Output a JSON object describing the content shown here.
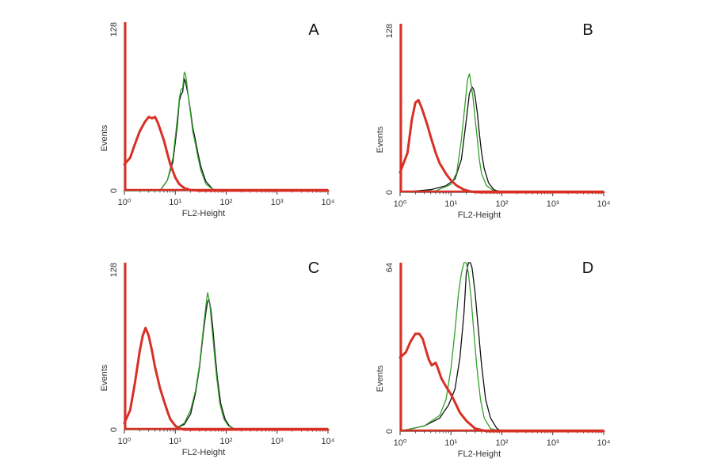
{
  "figure": {
    "colors": {
      "isotype": "#d93025",
      "green": "#33a02c",
      "black": "#111111",
      "axis": "#333333"
    }
  },
  "chart_data": [
    {
      "type": "line",
      "panel": "A",
      "xscale": "log",
      "xlim": [
        1,
        10000
      ],
      "ylim": [
        0,
        128
      ],
      "xlabel": "FL2-Height",
      "ylabel": "Events",
      "xticks": [
        "10⁰",
        "10¹",
        "10²",
        "10³",
        "10⁴"
      ],
      "yticks": [
        "0",
        "128"
      ],
      "series": [
        {
          "color": "red",
          "x": [
            1,
            1.3,
            1.6,
            2,
            2.5,
            3,
            3.5,
            4,
            4.5,
            5,
            6,
            7,
            8,
            10,
            12,
            15,
            20,
            30,
            100,
            10000
          ],
          "y": [
            20,
            25,
            35,
            45,
            52,
            56,
            55,
            56,
            52,
            47,
            38,
            28,
            20,
            10,
            5,
            2,
            0.5,
            0,
            0,
            0
          ]
        },
        {
          "color": "green",
          "x": [
            1,
            5,
            7,
            9,
            11,
            12,
            13,
            14,
            15,
            16,
            18,
            20,
            22,
            25,
            28,
            32,
            40,
            55,
            100,
            10000
          ],
          "y": [
            0,
            0,
            8,
            25,
            55,
            70,
            77,
            78,
            90,
            88,
            72,
            58,
            45,
            35,
            25,
            15,
            5,
            1,
            0,
            0
          ]
        },
        {
          "color": "black",
          "x": [
            1,
            5,
            7,
            9,
            11,
            12,
            13,
            14,
            15,
            16,
            18,
            20,
            22,
            25,
            28,
            32,
            40,
            55,
            100,
            10000
          ],
          "y": [
            0,
            0,
            8,
            22,
            50,
            68,
            73,
            75,
            85,
            82,
            72,
            60,
            48,
            38,
            28,
            18,
            7,
            1,
            0,
            0
          ]
        }
      ]
    },
    {
      "type": "line",
      "panel": "B",
      "xscale": "log",
      "xlim": [
        1,
        10000
      ],
      "ylim": [
        0,
        128
      ],
      "xlabel": "FL2-Height",
      "ylabel": "Events",
      "xticks": [
        "10⁰",
        "10¹",
        "10²",
        "10³",
        "10⁴"
      ],
      "yticks": [
        "0",
        "128"
      ],
      "series": [
        {
          "color": "red",
          "x": [
            1,
            1.4,
            1.7,
            2,
            2.3,
            2.6,
            3,
            3.5,
            4,
            5,
            6,
            8,
            10,
            13,
            18,
            25,
            35,
            100,
            10000
          ],
          "y": [
            15,
            30,
            55,
            68,
            70,
            65,
            58,
            50,
            42,
            30,
            22,
            14,
            9,
            5,
            2,
            0.5,
            0,
            0,
            0
          ]
        },
        {
          "color": "green",
          "x": [
            1,
            5,
            10,
            13,
            16,
            19,
            21,
            23,
            25,
            27,
            30,
            33,
            36,
            40,
            50,
            70,
            100,
            10000
          ],
          "y": [
            0,
            1,
            6,
            15,
            40,
            68,
            85,
            90,
            82,
            72,
            55,
            40,
            25,
            14,
            5,
            1,
            0,
            0
          ]
        },
        {
          "color": "black",
          "x": [
            1,
            4,
            8,
            12,
            16,
            20,
            23,
            26,
            28,
            30,
            33,
            36,
            40,
            45,
            55,
            70,
            100,
            10000
          ],
          "y": [
            0,
            2,
            5,
            10,
            25,
            55,
            75,
            80,
            78,
            72,
            60,
            45,
            30,
            18,
            7,
            2,
            0,
            0
          ]
        }
      ]
    },
    {
      "type": "line",
      "panel": "C",
      "xscale": "log",
      "xlim": [
        1,
        10000
      ],
      "ylim": [
        0,
        128
      ],
      "xlabel": "FL2-Height",
      "ylabel": "Events",
      "xticks": [
        "10⁰",
        "10¹",
        "10²",
        "10³",
        "10⁴"
      ],
      "yticks": [
        "0",
        "128"
      ],
      "series": [
        {
          "color": "red",
          "x": [
            1,
            1.3,
            1.6,
            2,
            2.3,
            2.6,
            3,
            3.5,
            4,
            5,
            6,
            7,
            8,
            10,
            12,
            15,
            20,
            100,
            10000
          ],
          "y": [
            5,
            15,
            35,
            60,
            72,
            78,
            72,
            60,
            48,
            32,
            22,
            14,
            8,
            3,
            1,
            0,
            0,
            0,
            0
          ]
        },
        {
          "color": "green",
          "x": [
            1,
            10,
            15,
            20,
            25,
            30,
            35,
            40,
            43,
            45,
            48,
            52,
            58,
            65,
            75,
            90,
            110,
            150,
            10000
          ],
          "y": [
            0,
            1,
            5,
            15,
            30,
            50,
            75,
            95,
            105,
            102,
            95,
            80,
            60,
            40,
            20,
            8,
            3,
            0,
            0
          ]
        },
        {
          "color": "black",
          "x": [
            1,
            10,
            15,
            20,
            25,
            30,
            35,
            40,
            43,
            46,
            50,
            54,
            60,
            67,
            78,
            95,
            115,
            150,
            10000
          ],
          "y": [
            0,
            1,
            4,
            12,
            28,
            48,
            72,
            90,
            98,
            100,
            92,
            80,
            60,
            40,
            20,
            8,
            3,
            0,
            0
          ]
        }
      ]
    },
    {
      "type": "line",
      "panel": "D",
      "xscale": "log",
      "xlim": [
        1,
        10000
      ],
      "ylim": [
        0,
        64
      ],
      "xlabel": "FL2-Height",
      "ylabel": "Events",
      "xticks": [
        "10⁰",
        "10¹",
        "10²",
        "10³",
        "10⁴"
      ],
      "yticks": [
        "0",
        "64"
      ],
      "series": [
        {
          "color": "red",
          "x": [
            1,
            1.3,
            1.6,
            2,
            2.4,
            2.8,
            3.2,
            3.7,
            4.2,
            5,
            5.5,
            6.5,
            8,
            10,
            12,
            15,
            20,
            30,
            50,
            100,
            10000
          ],
          "y": [
            28,
            30,
            34,
            37,
            37,
            35,
            31,
            27,
            25,
            26,
            24,
            20,
            17,
            14,
            11,
            7,
            4,
            1,
            0,
            0,
            0
          ]
        },
        {
          "color": "green",
          "x": [
            1,
            3,
            6,
            8,
            10,
            12,
            14,
            16,
            18,
            20,
            22,
            25,
            28,
            32,
            38,
            45,
            60,
            100,
            10000
          ],
          "y": [
            0,
            2,
            6,
            12,
            24,
            38,
            52,
            60,
            64,
            64,
            60,
            50,
            38,
            25,
            12,
            5,
            1,
            0,
            0
          ]
        },
        {
          "color": "black",
          "x": [
            1,
            3,
            6,
            9,
            12,
            15,
            18,
            20,
            22,
            24,
            26,
            30,
            34,
            40,
            48,
            60,
            80,
            100,
            10000
          ],
          "y": [
            0,
            2,
            5,
            10,
            16,
            28,
            45,
            60,
            64,
            64,
            62,
            52,
            40,
            25,
            12,
            5,
            1,
            0,
            0
          ]
        }
      ]
    }
  ]
}
